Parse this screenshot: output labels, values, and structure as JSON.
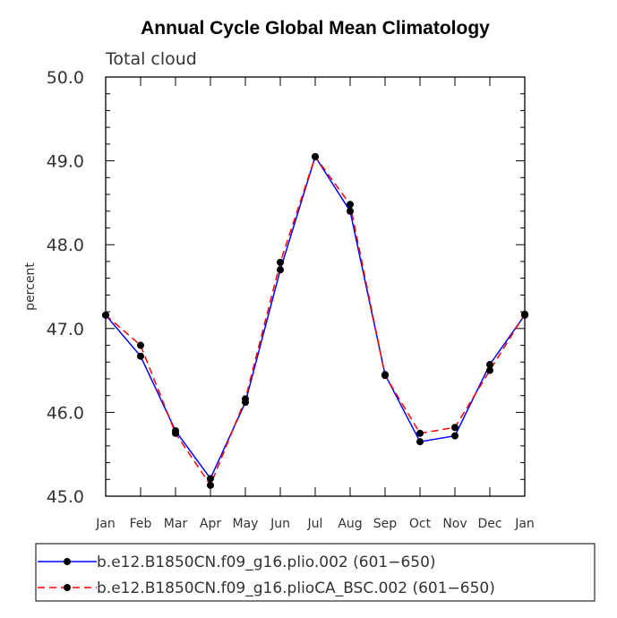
{
  "chart_data": {
    "type": "line",
    "title": "Annual Cycle Global Mean Climatology",
    "subtitle": "Total cloud",
    "xlabel": "",
    "ylabel": "percent",
    "categories": [
      "Jan",
      "Feb",
      "Mar",
      "Apr",
      "May",
      "Jun",
      "Jul",
      "Aug",
      "Sep",
      "Oct",
      "Nov",
      "Dec",
      "Jan"
    ],
    "ylim": [
      45.0,
      50.0
    ],
    "yticks": [
      "45.0",
      "46.0",
      "47.0",
      "48.0",
      "49.0",
      "50.0"
    ],
    "grid": false,
    "legend_position": "bottom",
    "series": [
      {
        "name": "b.e12.B1850CN.f09_g16.plio.002 (601−650)",
        "color": "#0000ff",
        "line_style": "solid",
        "values": [
          47.16,
          46.67,
          45.78,
          45.21,
          46.12,
          47.7,
          49.05,
          48.4,
          46.45,
          45.65,
          45.72,
          46.57,
          47.16
        ]
      },
      {
        "name": "b.e12.B1850CN.f09_g16.plioCA_BSC.002 (601−650)",
        "color": "#ff0000",
        "line_style": "dashed",
        "values": [
          47.16,
          46.8,
          45.75,
          45.13,
          46.16,
          47.79,
          49.05,
          48.48,
          46.44,
          45.75,
          45.82,
          46.5,
          47.17
        ]
      }
    ]
  }
}
